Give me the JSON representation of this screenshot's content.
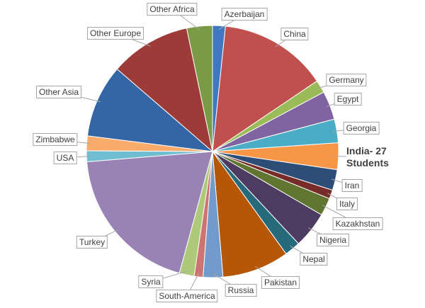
{
  "chart_data": {
    "type": "pie",
    "categories": [
      "Azerbaijan",
      "China",
      "Germany",
      "Egypt",
      "Georgia",
      "India- 27 Students",
      "Iran",
      "Italy",
      "Kazakhstan",
      "Nigeria",
      "Nepal",
      "Pakistan",
      "Russia",
      "South-America",
      "Syria",
      "Turkey",
      "USA",
      "Zimbabwe",
      "Other Asia",
      "Other Europe",
      "Other Africa"
    ],
    "values": [
      13,
      110,
      13,
      29,
      24,
      27,
      21,
      9,
      18,
      37,
      16,
      68,
      20,
      9,
      15,
      154,
      11,
      15,
      74,
      82,
      26
    ],
    "colors": [
      "#3f78c0",
      "#c0504d",
      "#9bbb59",
      "#8064a2",
      "#4bacc6",
      "#f79646",
      "#2c4d75",
      "#772c2a",
      "#5f7530",
      "#4d3b62",
      "#276a7c",
      "#b65708",
      "#729aca",
      "#cd7371",
      "#afc97a",
      "#9983b5",
      "#6fbdd1",
      "#f9ab6b",
      "#3465a4",
      "#9c3b38",
      "#7a9a45"
    ]
  }
}
